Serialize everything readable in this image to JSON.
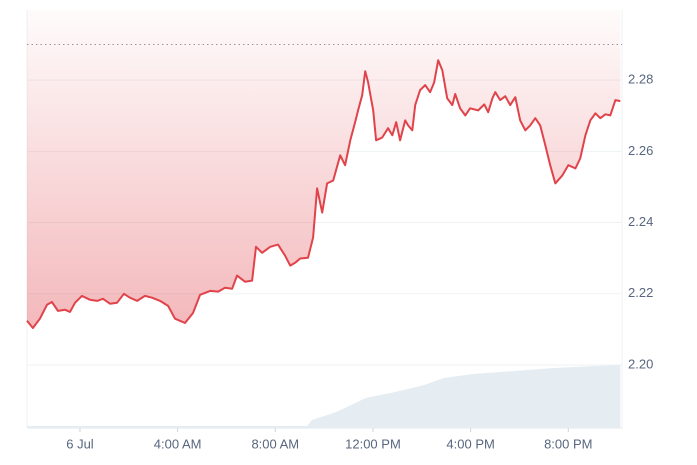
{
  "chart_data": {
    "type": "line",
    "x": [
      -2.17,
      -1.93,
      -1.64,
      -1.35,
      -1.15,
      -0.9,
      -0.61,
      -0.41,
      -0.2,
      0.08,
      0.41,
      0.7,
      0.94,
      1.23,
      1.52,
      1.8,
      2.05,
      2.34,
      2.66,
      2.95,
      3.28,
      3.61,
      3.89,
      4.3,
      4.63,
      4.92,
      5.33,
      5.66,
      5.94,
      6.23,
      6.43,
      6.76,
      7.05,
      7.21,
      7.46,
      7.79,
      8.11,
      8.4,
      8.61,
      8.81,
      9.02,
      9.34,
      9.55,
      9.71,
      9.92,
      10.12,
      10.37,
      10.66,
      10.86,
      11.07,
      11.27,
      11.39,
      11.56,
      11.68,
      11.8,
      12.01,
      12.13,
      12.38,
      12.62,
      12.79,
      12.95,
      13.11,
      13.32,
      13.44,
      13.61,
      13.73,
      13.93,
      14.14,
      14.34,
      14.51,
      14.67,
      14.84,
      15.04,
      15.25,
      15.37,
      15.57,
      15.78,
      15.98,
      16.31,
      16.56,
      16.72,
      16.89,
      17.01,
      17.21,
      17.42,
      17.62,
      17.83,
      18.03,
      18.24,
      18.44,
      18.65,
      18.85,
      19.06,
      19.26,
      19.47,
      19.75,
      20.0,
      20.29,
      20.49,
      20.7,
      20.9,
      21.11,
      21.31,
      21.52,
      21.72,
      21.93,
      22.13
    ],
    "series": [
      {
        "color": "#e0434a",
        "values": [
          2.2124,
          2.2104,
          2.213,
          2.2169,
          2.2177,
          2.2152,
          2.2155,
          2.2149,
          2.2175,
          2.2194,
          2.2183,
          2.218,
          2.2186,
          2.2172,
          2.2175,
          2.22,
          2.2189,
          2.218,
          2.2194,
          2.2189,
          2.218,
          2.2166,
          2.213,
          2.2118,
          2.2146,
          2.2197,
          2.2208,
          2.2206,
          2.2217,
          2.2214,
          2.2251,
          2.2234,
          2.2237,
          2.2332,
          2.2315,
          2.2332,
          2.2338,
          2.2307,
          2.2279,
          2.2287,
          2.2299,
          2.2301,
          2.2358,
          2.2496,
          2.2428,
          2.251,
          2.2518,
          2.2589,
          2.2561,
          2.2631,
          2.2682,
          2.2715,
          2.2758,
          2.2825,
          2.2794,
          2.2715,
          2.2631,
          2.2639,
          2.2665,
          2.2645,
          2.2682,
          2.2631,
          2.2687,
          2.2673,
          2.2659,
          2.273,
          2.2772,
          2.2786,
          2.2766,
          2.2794,
          2.2856,
          2.2828,
          2.2749,
          2.273,
          2.2761,
          2.2721,
          2.2701,
          2.2721,
          2.2715,
          2.2732,
          2.271,
          2.2749,
          2.2766,
          2.2744,
          2.2755,
          2.273,
          2.2752,
          2.2687,
          2.2659,
          2.2673,
          2.2693,
          2.2673,
          2.2617,
          2.2561,
          2.251,
          2.2532,
          2.2561,
          2.2552,
          2.258,
          2.2645,
          2.2687,
          2.2707,
          2.2693,
          2.2704,
          2.2701,
          2.2744,
          2.2741
        ]
      }
    ],
    "volume": {
      "color": "#e6edf2",
      "x": [
        -2.17,
        5,
        9.3,
        9.5,
        10.5,
        11.1,
        11.7,
        12.9,
        14.1,
        14.9,
        16.1,
        17.8,
        19.4,
        21.1,
        22.13
      ],
      "values": [
        2,
        2,
        2,
        8,
        16,
        23,
        30,
        36,
        43,
        50,
        54,
        57,
        60,
        62,
        63
      ],
      "ylim": [
        0,
        100
      ]
    },
    "ref_line": 2.29,
    "xlim": [
      -2.17,
      22.2
    ],
    "ylim": [
      2.1823,
      2.2997
    ],
    "xticks": [
      {
        "value": 0,
        "label": "6 Jul"
      },
      {
        "value": 4,
        "label": "4:00 AM"
      },
      {
        "value": 8,
        "label": "8:00 AM"
      },
      {
        "value": 12,
        "label": "12:00 PM"
      },
      {
        "value": 16,
        "label": "4:00 PM"
      },
      {
        "value": 20,
        "label": "8:00 PM"
      }
    ],
    "yticks": [
      {
        "value": 2.2,
        "label": "2.20"
      },
      2.22,
      2.24,
      2.26,
      2.28
    ],
    "grid": true
  }
}
